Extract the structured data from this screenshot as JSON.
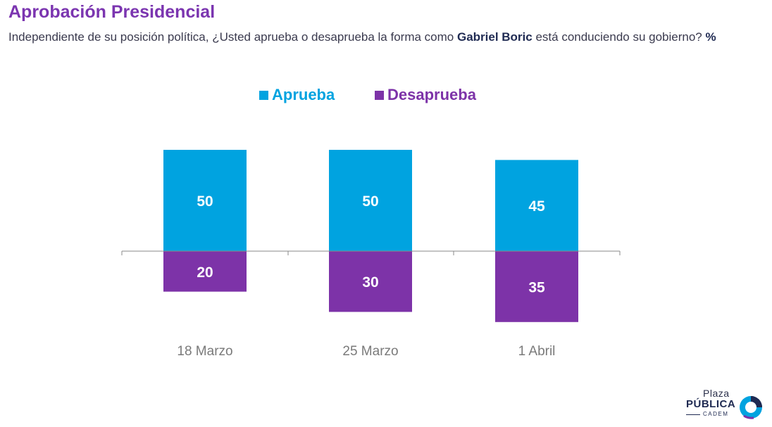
{
  "header": {
    "title": "Aprobación Presidencial",
    "question_pre": "Independiente de su posición política, ¿Usted aprueba o desaprueba la forma como ",
    "question_name": "Gabriel Boric",
    "question_post": " está conduciendo su gobierno? ",
    "question_unit": "%"
  },
  "chart_data": {
    "type": "bar",
    "stacked": "diverging",
    "categories": [
      "18 Marzo",
      "25 Marzo",
      "1 Abril"
    ],
    "series": [
      {
        "name": "Aprueba",
        "values": [
          50,
          50,
          45
        ],
        "color": "#00a3e0",
        "direction": "up"
      },
      {
        "name": "Desaprueba",
        "values": [
          20,
          30,
          35
        ],
        "color": "#7d33a8",
        "direction": "down"
      }
    ],
    "legend_position": "top-center",
    "grid": false,
    "data_labels": true
  },
  "logo": {
    "line1": "Plaza",
    "line2": "PÚBLICA",
    "line3": "CADEM",
    "icon": "cadem-logo-icon"
  }
}
